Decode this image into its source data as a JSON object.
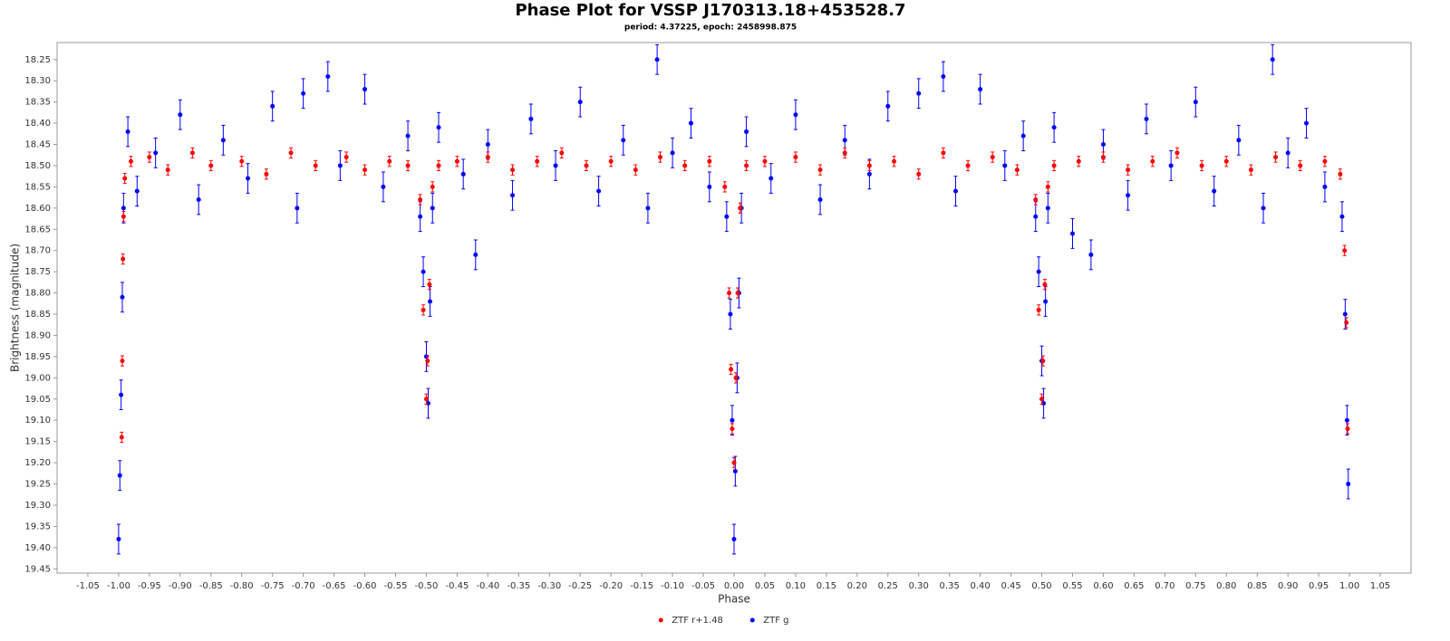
{
  "chart_data": {
    "type": "scatter",
    "title": "Phase Plot for VSSP J170313.18+453528.7",
    "subtitle": "period: 4.37225, epoch: 2458998.875",
    "x_label": "Phase",
    "y_label": "Brightness (magnitude)",
    "xlim": [
      -1.1,
      1.1
    ],
    "ylim": [
      18.21,
      19.46
    ],
    "y_reversed": true,
    "grid": false,
    "legend": "bottom",
    "xticks": [
      -1.05,
      {
        "value": -1,
        "label": "-1.00"
      },
      -0.95,
      {
        "value": -0.9,
        "label": "-0.90"
      },
      -0.85,
      {
        "value": -0.8,
        "label": "-0.80"
      },
      -0.75,
      {
        "value": -0.7,
        "label": "-0.70"
      },
      -0.65,
      {
        "value": -0.6,
        "label": "-0.60"
      },
      -0.55,
      {
        "value": -0.5,
        "label": "-0.50"
      },
      -0.45,
      {
        "value": -0.4,
        "label": "-0.40"
      },
      -0.35,
      {
        "value": -0.3,
        "label": "-0.30"
      },
      -0.25,
      {
        "value": -0.2,
        "label": "-0.20"
      },
      -0.15,
      {
        "value": -0.1,
        "label": "-0.10"
      },
      -0.05,
      {
        "value": 0,
        "label": "0.00"
      },
      0.05,
      {
        "value": 0.1,
        "label": "0.10"
      },
      0.15,
      {
        "value": 0.2,
        "label": "0.20"
      },
      0.25,
      {
        "value": 0.3,
        "label": "0.30"
      },
      0.35,
      {
        "value": 0.4,
        "label": "0.40"
      },
      0.45,
      {
        "value": 0.5,
        "label": "0.50"
      },
      0.55,
      {
        "value": 0.6,
        "label": "0.60"
      },
      0.65,
      {
        "value": 0.7,
        "label": "0.70"
      },
      0.75,
      {
        "value": 0.8,
        "label": "0.80"
      },
      0.85,
      {
        "value": 0.9,
        "label": "0.90"
      },
      0.95,
      {
        "value": 1,
        "label": "1.00"
      },
      1.05
    ],
    "yticks": [
      18.25,
      {
        "value": 18.3,
        "label": "18.30"
      },
      18.35,
      {
        "value": 18.4,
        "label": "18.40"
      },
      18.45,
      {
        "value": 18.5,
        "label": "18.50"
      },
      18.55,
      {
        "value": 18.6,
        "label": "18.60"
      },
      18.65,
      {
        "value": 18.7,
        "label": "18.70"
      },
      18.75,
      {
        "value": 18.8,
        "label": "18.80"
      },
      18.85,
      {
        "value": 18.9,
        "label": "18.90"
      },
      18.95,
      {
        "value": 19,
        "label": "19.00"
      },
      19.05,
      {
        "value": 19.1,
        "label": "19.10"
      },
      19.15,
      {
        "value": 19.2,
        "label": "19.20"
      },
      19.25,
      {
        "value": 19.3,
        "label": "19.30"
      },
      19.35,
      {
        "value": 19.4,
        "label": "19.40"
      },
      19.45
    ],
    "series": [
      {
        "name": "ZTF r+1.48",
        "color": "#ff0000",
        "error": 0.012,
        "x": [
          -0.995,
          -0.994,
          -0.993,
          -0.992,
          -0.99,
          -0.98,
          -0.95,
          -0.92,
          -0.88,
          -0.85,
          -0.8,
          -0.76,
          -0.72,
          -0.68,
          -0.63,
          -0.6,
          -0.56,
          -0.53,
          -0.51,
          -0.505,
          -0.5,
          -0.498,
          -0.495,
          -0.49,
          -0.48,
          -0.45,
          -0.4,
          -0.36,
          -0.32,
          -0.28,
          -0.24,
          -0.2,
          -0.16,
          -0.12,
          -0.08,
          -0.04,
          -0.015,
          -0.008,
          -0.005,
          -0.003,
          0,
          0.003,
          0.006,
          0.01,
          0.02,
          0.05,
          0.1,
          0.14,
          0.18,
          0.22,
          0.26,
          0.3,
          0.34,
          0.38,
          0.42,
          0.46,
          0.49,
          0.495,
          0.5,
          0.502,
          0.505,
          0.51,
          0.52,
          0.56,
          0.6,
          0.64,
          0.68,
          0.72,
          0.76,
          0.8,
          0.84,
          0.88,
          0.92,
          0.96,
          0.985,
          0.992,
          0.995,
          0.997
        ],
        "values": [
          19.14,
          18.96,
          18.72,
          18.62,
          18.53,
          18.49,
          18.48,
          18.51,
          18.47,
          18.5,
          18.49,
          18.52,
          18.47,
          18.5,
          18.48,
          18.51,
          18.49,
          18.5,
          18.58,
          18.84,
          19.05,
          18.96,
          18.78,
          18.55,
          18.5,
          18.49,
          18.48,
          18.51,
          18.49,
          18.47,
          18.5,
          18.49,
          18.51,
          18.48,
          18.5,
          18.49,
          18.55,
          18.8,
          18.98,
          19.12,
          19.2,
          19,
          18.8,
          18.6,
          18.5,
          18.49,
          18.48,
          18.51,
          18.47,
          18.5,
          18.49,
          18.52,
          18.47,
          18.5,
          18.48,
          18.51,
          18.58,
          18.84,
          19.05,
          18.96,
          18.78,
          18.55,
          18.5,
          18.49,
          18.48,
          18.51,
          18.49,
          18.47,
          18.5,
          18.49,
          18.51,
          18.48,
          18.5,
          18.49,
          18.52,
          18.7,
          18.87,
          19.12
        ]
      },
      {
        "name": "ZTF g",
        "color": "#0000ff",
        "error": 0.035,
        "x": [
          -1,
          -0.998,
          -0.996,
          -0.994,
          -0.992,
          -0.985,
          -0.97,
          -0.94,
          -0.9,
          -0.87,
          -0.83,
          -0.79,
          -0.75,
          -0.71,
          -0.7,
          -0.66,
          -0.64,
          -0.6,
          -0.57,
          -0.53,
          -0.51,
          -0.505,
          -0.5,
          -0.497,
          -0.494,
          -0.49,
          -0.48,
          -0.44,
          -0.42,
          -0.4,
          -0.36,
          -0.33,
          -0.29,
          -0.25,
          -0.22,
          -0.18,
          -0.14,
          -0.125,
          -0.1,
          -0.07,
          -0.04,
          -0.012,
          -0.006,
          -0.003,
          0,
          0.002,
          0.005,
          0.008,
          0.012,
          0.02,
          0.06,
          0.1,
          0.14,
          0.18,
          0.22,
          0.25,
          0.3,
          0.34,
          0.36,
          0.4,
          0.44,
          0.47,
          0.49,
          0.495,
          0.5,
          0.503,
          0.506,
          0.51,
          0.52,
          0.55,
          0.58,
          0.6,
          0.64,
          0.67,
          0.71,
          0.75,
          0.78,
          0.82,
          0.86,
          0.875,
          0.9,
          0.93,
          0.96,
          0.988,
          0.993,
          0.996,
          0.998
        ],
        "values": [
          19.38,
          19.23,
          19.04,
          18.81,
          18.6,
          18.42,
          18.56,
          18.47,
          18.38,
          18.58,
          18.44,
          18.53,
          18.36,
          18.6,
          18.33,
          18.29,
          18.5,
          18.32,
          18.55,
          18.43,
          18.62,
          18.75,
          18.95,
          19.06,
          18.82,
          18.6,
          18.41,
          18.52,
          18.71,
          18.45,
          18.57,
          18.39,
          18.5,
          18.35,
          18.56,
          18.44,
          18.6,
          18.25,
          18.47,
          18.4,
          18.55,
          18.62,
          18.85,
          19.1,
          19.38,
          19.22,
          19,
          18.8,
          18.6,
          18.42,
          18.53,
          18.38,
          18.58,
          18.44,
          18.52,
          18.36,
          18.33,
          18.29,
          18.56,
          18.32,
          18.5,
          18.43,
          18.62,
          18.75,
          18.96,
          19.06,
          18.82,
          18.6,
          18.41,
          18.66,
          18.71,
          18.45,
          18.57,
          18.39,
          18.5,
          18.35,
          18.56,
          18.44,
          18.6,
          18.25,
          18.47,
          18.4,
          18.55,
          18.62,
          18.85,
          19.1,
          19.25
        ]
      }
    ]
  }
}
